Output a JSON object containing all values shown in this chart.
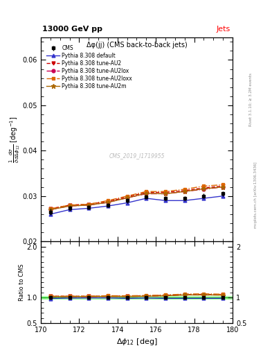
{
  "title_top": "13000 GeV pp",
  "title_right": "Jets",
  "plot_title": "Δφ(jj) (CMS back-to-back jets)",
  "xlabel": "Δφ_{12} [deg]",
  "ylabel_ratio": "Ratio to CMS",
  "right_label_top": "Rivet 3.1.10; ≥ 3.2M events",
  "right_label_bottom": "mcplots.cern.ch [arXiv:1306.3436]",
  "watermark": "CMS_2019_I1719955",
  "xlim": [
    170,
    180
  ],
  "ylim_main": [
    0.02,
    0.065
  ],
  "ylim_ratio": [
    0.5,
    2.1
  ],
  "x_data": [
    170.5,
    171.5,
    172.5,
    173.5,
    174.5,
    175.5,
    176.5,
    177.5,
    178.5,
    179.5
  ],
  "cms_data": [
    0.0265,
    0.0273,
    0.0275,
    0.028,
    0.029,
    0.0298,
    0.0295,
    0.0295,
    0.03,
    0.0305
  ],
  "cms_err": [
    0.0007,
    0.0005,
    0.0005,
    0.0005,
    0.0005,
    0.0005,
    0.0005,
    0.0005,
    0.0005,
    0.0005
  ],
  "default_data": [
    0.026,
    0.027,
    0.0273,
    0.0278,
    0.0285,
    0.0295,
    0.029,
    0.029,
    0.0295,
    0.03
  ],
  "au2_data": [
    0.0272,
    0.028,
    0.0282,
    0.0288,
    0.0298,
    0.0308,
    0.0308,
    0.0312,
    0.0318,
    0.0322
  ],
  "au2lox_data": [
    0.027,
    0.0278,
    0.028,
    0.0286,
    0.0296,
    0.0305,
    0.0305,
    0.031,
    0.0315,
    0.032
  ],
  "au2loxx_data": [
    0.0272,
    0.028,
    0.0282,
    0.029,
    0.03,
    0.031,
    0.031,
    0.0315,
    0.0322,
    0.0325
  ],
  "au2m_data": [
    0.027,
    0.0278,
    0.028,
    0.0286,
    0.0296,
    0.0306,
    0.0305,
    0.031,
    0.0316,
    0.032
  ],
  "cms_color": "#000000",
  "default_color": "#3333cc",
  "au2_color": "#cc0000",
  "au2lox_color": "#cc0055",
  "au2loxx_color": "#dd6600",
  "au2m_color": "#aa6600",
  "ratio_band_color": "#99ff99",
  "cms_marker": "s",
  "default_marker": "^",
  "au2_marker": "v",
  "au2lox_marker": "o",
  "au2loxx_marker": "s",
  "au2m_marker": "*"
}
